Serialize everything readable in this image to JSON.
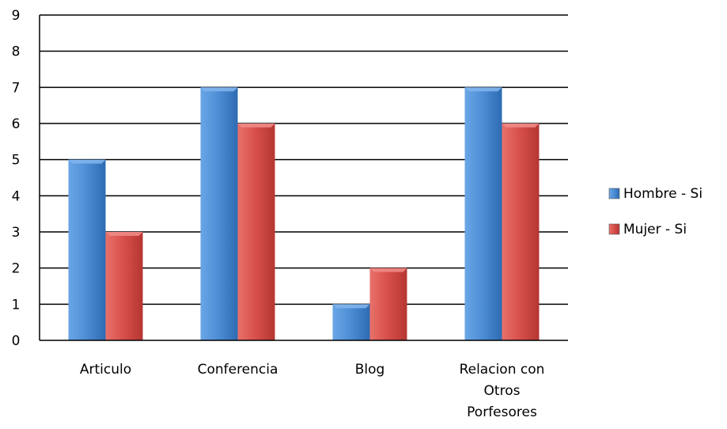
{
  "chart_data": {
    "type": "bar",
    "title": "",
    "xlabel": "",
    "ylabel": "",
    "categories": [
      [
        "Articulo"
      ],
      [
        "Conferencia"
      ],
      [
        "Blog"
      ],
      [
        "Relacion con",
        "Otros",
        "Porfesores"
      ]
    ],
    "series": [
      {
        "name": "Hombre - Si",
        "color": "#4f8fd6",
        "values": [
          5,
          7,
          1,
          7
        ]
      },
      {
        "name": "Mujer - Si",
        "color": "#d9514c",
        "values": [
          3,
          6,
          2,
          6
        ]
      }
    ],
    "ylim": [
      0,
      9
    ],
    "yticks": [
      0,
      1,
      2,
      3,
      4,
      5,
      6,
      7,
      8,
      9
    ],
    "grid": true,
    "legend_position": "right"
  }
}
